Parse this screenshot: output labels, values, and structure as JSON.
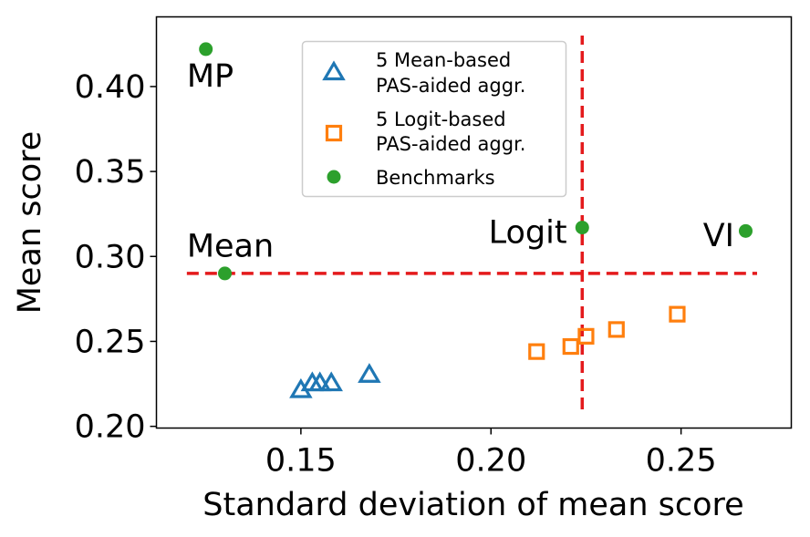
{
  "chart_data": {
    "type": "scatter",
    "title": "",
    "xlabel": "Standard deviation of mean score",
    "ylabel": "Mean score",
    "xlim": [
      0.112,
      0.279
    ],
    "ylim": [
      0.199,
      0.441
    ],
    "xticks": [
      0.15,
      0.2,
      0.25
    ],
    "xtick_labels": [
      "0.15",
      "0.20",
      "0.25"
    ],
    "yticks": [
      0.2,
      0.25,
      0.3,
      0.35,
      0.4
    ],
    "ytick_labels": [
      "0.20",
      "0.25",
      "0.30",
      "0.35",
      "0.40"
    ],
    "grid": false,
    "legend_position": "upper-center",
    "colors": {
      "mean_based": "#1f77b4",
      "logit_based": "#ff7f0e",
      "benchmarks": "#2ca02c",
      "reference_lines": "#e41a1c"
    },
    "series": [
      {
        "name": "5 Mean-based PAS-aided aggr.",
        "legend_lines": [
          "5 Mean-based",
          "PAS-aided aggr."
        ],
        "marker": "triangle-open",
        "color": "#1f77b4",
        "points": [
          {
            "x": 0.15,
            "y": 0.221
          },
          {
            "x": 0.153,
            "y": 0.225
          },
          {
            "x": 0.155,
            "y": 0.225
          },
          {
            "x": 0.158,
            "y": 0.225
          },
          {
            "x": 0.168,
            "y": 0.23
          }
        ]
      },
      {
        "name": "5 Logit-based PAS-aided aggr.",
        "legend_lines": [
          "5 Logit-based",
          "PAS-aided aggr."
        ],
        "marker": "square-open",
        "color": "#ff7f0e",
        "points": [
          {
            "x": 0.212,
            "y": 0.244
          },
          {
            "x": 0.221,
            "y": 0.247
          },
          {
            "x": 0.225,
            "y": 0.253
          },
          {
            "x": 0.233,
            "y": 0.257
          },
          {
            "x": 0.249,
            "y": 0.266
          }
        ]
      },
      {
        "name": "Benchmarks",
        "legend_lines": [
          "Benchmarks"
        ],
        "marker": "circle",
        "color": "#2ca02c",
        "points": [
          {
            "x": 0.125,
            "y": 0.422,
            "label": "MP"
          },
          {
            "x": 0.13,
            "y": 0.29,
            "label": "Mean"
          },
          {
            "x": 0.224,
            "y": 0.317,
            "label": "Logit"
          },
          {
            "x": 0.267,
            "y": 0.315,
            "label": "VI"
          }
        ]
      }
    ],
    "reference_lines": [
      {
        "orientation": "horizontal",
        "y": 0.29,
        "x_from": 0.12,
        "x_to": 0.27,
        "style": "dashed"
      },
      {
        "orientation": "vertical",
        "x": 0.224,
        "y_from": 0.21,
        "y_to": 0.43,
        "style": "dashed"
      }
    ],
    "annotations": [
      {
        "text": "MP",
        "x": 0.12,
        "y": 0.4,
        "anchor": "start"
      },
      {
        "text": "Mean",
        "x": 0.12,
        "y": 0.3,
        "anchor": "start"
      },
      {
        "text": "Logit",
        "x": 0.22,
        "y": 0.308,
        "anchor": "end"
      },
      {
        "text": "VI",
        "x": 0.264,
        "y": 0.306,
        "anchor": "end"
      }
    ]
  }
}
